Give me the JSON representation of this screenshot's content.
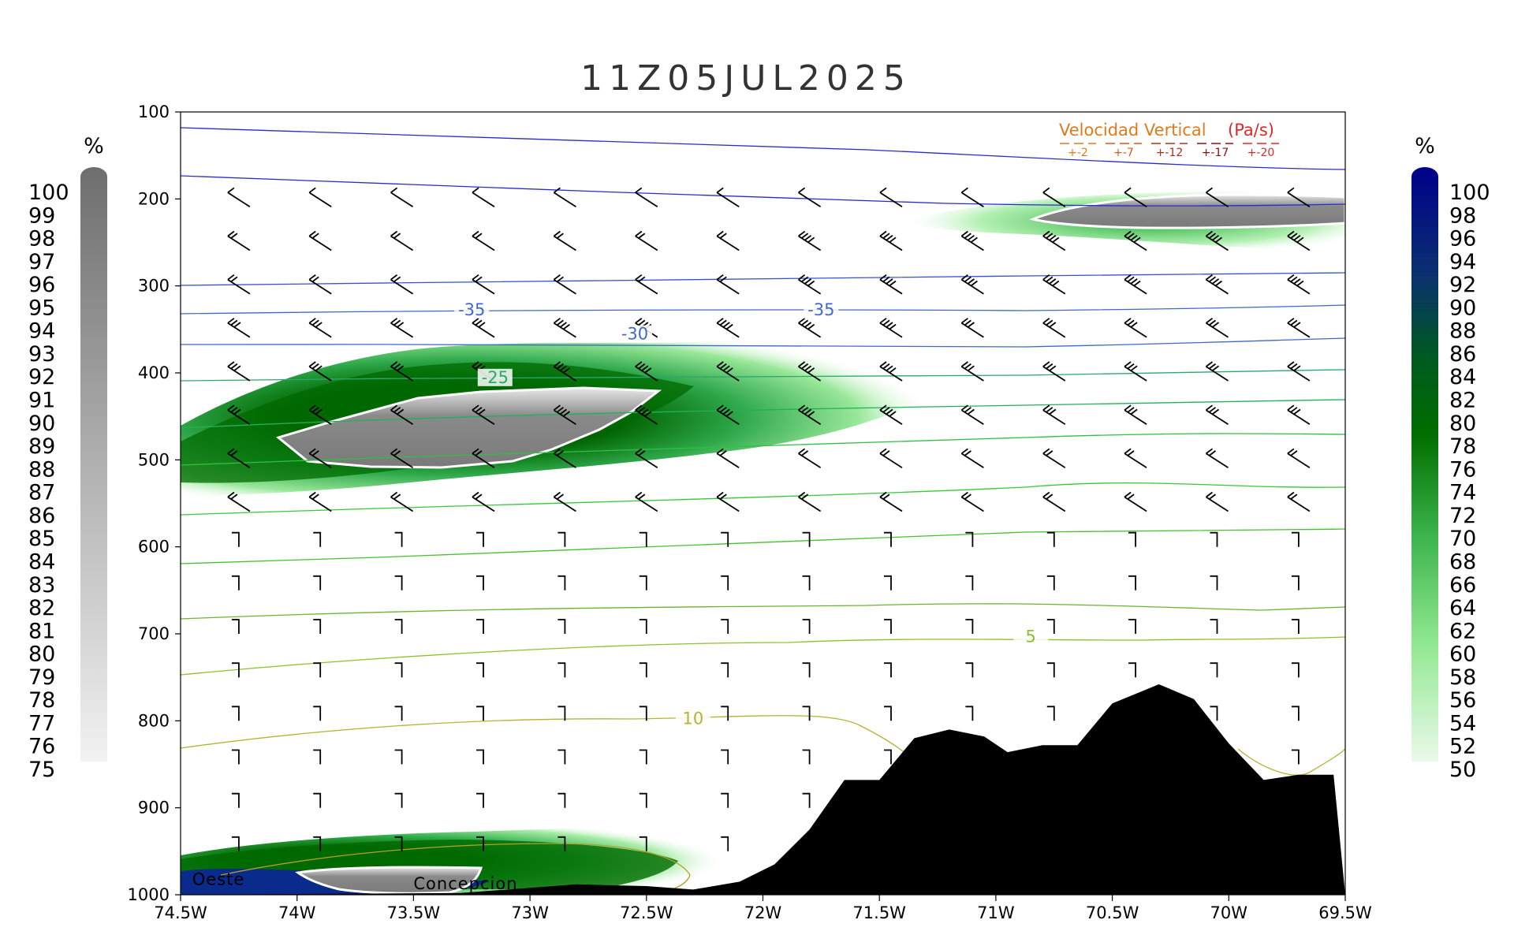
{
  "chart_data": {
    "type": "cross-section",
    "title": "11Z05JUL2025",
    "x_ticks": [
      "74.5W",
      "74W",
      "73.5W",
      "73W",
      "72.5W",
      "72W",
      "71.5W",
      "71W",
      "70.5W",
      "70W",
      "69.5W"
    ],
    "x_range": [
      -74.5,
      -69.5
    ],
    "y_ticks": [
      "100",
      "200",
      "300",
      "400",
      "500",
      "600",
      "700",
      "800",
      "900",
      "1000"
    ],
    "y_range_hpa": [
      1000,
      100
    ],
    "y_scale": "linear-pressure",
    "left_colorbar": {
      "unit": "%",
      "labels": [
        "100",
        "99",
        "98",
        "97",
        "96",
        "95",
        "94",
        "93",
        "92",
        "91",
        "90",
        "89",
        "88",
        "87",
        "86",
        "85",
        "84",
        "83",
        "82",
        "81",
        "80",
        "79",
        "78",
        "77",
        "76",
        "75"
      ],
      "colors": [
        "#6e6e6e",
        "#f2f2f2"
      ]
    },
    "right_colorbar": {
      "unit": "%",
      "labels": [
        "100",
        "98",
        "96",
        "94",
        "92",
        "90",
        "88",
        "86",
        "84",
        "82",
        "80",
        "78",
        "76",
        "74",
        "72",
        "70",
        "68",
        "66",
        "64",
        "62",
        "60",
        "58",
        "56",
        "54",
        "52",
        "50"
      ]
    },
    "legend": {
      "title_a": "Velocidad Vertical",
      "title_b": "(Pa/s)",
      "entries": [
        {
          "label": "+-2",
          "color": "#e07a1a"
        },
        {
          "label": "+-7",
          "color": "#d9581c"
        },
        {
          "label": "+-12",
          "color": "#b0301a"
        },
        {
          "label": "+-17",
          "color": "#8b1010"
        },
        {
          "label": "+-20",
          "color": "#e0282a"
        }
      ]
    },
    "temperature_contour_labels": [
      {
        "label": "-35",
        "lon": -73.25,
        "p": 330,
        "color": "#4169c8"
      },
      {
        "label": "-35",
        "lon": -71.75,
        "p": 330,
        "color": "#4169c8"
      },
      {
        "label": "-30",
        "lon": -72.55,
        "p": 358,
        "color": "#4169c8"
      },
      {
        "label": "-25",
        "lon": -73.15,
        "p": 408,
        "color": "#2aa86e"
      },
      {
        "label": "5",
        "lon": -70.85,
        "p": 706,
        "color": "#8fc02a"
      },
      {
        "label": "10",
        "lon": -72.3,
        "p": 800,
        "color": "#b4b432"
      }
    ],
    "wind_barb_lons": [
      -74.25,
      -73.9,
      -73.55,
      -73.2,
      -72.85,
      -72.5,
      -72.15,
      -71.8,
      -71.45,
      -71.1,
      -70.75,
      -70.4,
      -70.05,
      -69.7
    ],
    "wind_barb_levels": [
      200,
      250,
      300,
      350,
      400,
      450,
      500,
      550,
      600,
      650,
      700,
      750,
      800,
      850,
      900,
      950
    ],
    "terrain_profile": [
      [
        -74.5,
        1000
      ],
      [
        -73.3,
        998
      ],
      [
        -73.0,
        992
      ],
      [
        -72.8,
        988
      ],
      [
        -72.5,
        990
      ],
      [
        -72.3,
        994
      ],
      [
        -72.1,
        985
      ],
      [
        -71.95,
        965
      ],
      [
        -71.8,
        925
      ],
      [
        -71.65,
        868
      ],
      [
        -71.5,
        868
      ],
      [
        -71.35,
        820
      ],
      [
        -71.2,
        810
      ],
      [
        -71.05,
        818
      ],
      [
        -70.95,
        836
      ],
      [
        -70.8,
        828
      ],
      [
        -70.65,
        828
      ],
      [
        -70.5,
        780
      ],
      [
        -70.3,
        758
      ],
      [
        -70.15,
        775
      ],
      [
        -70.0,
        826
      ],
      [
        -69.85,
        868
      ],
      [
        -69.7,
        862
      ],
      [
        -69.55,
        862
      ],
      [
        -69.5,
        1000
      ]
    ],
    "place_labels": [
      {
        "label": "Oeste",
        "lon": -74.45,
        "p": 985
      },
      {
        "label": "Concepcion",
        "lon": -73.5,
        "p": 990
      }
    ]
  }
}
